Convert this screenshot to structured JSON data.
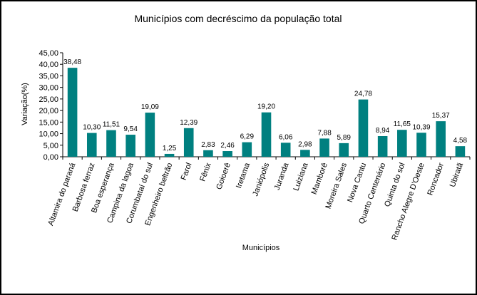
{
  "chart_data": {
    "type": "bar",
    "title": "Municípios com decréscimo da população total",
    "xlabel": "Municípios",
    "ylabel": "Variação(%)",
    "ylim": [
      0,
      45
    ],
    "yticks": [
      0,
      5,
      10,
      15,
      20,
      25,
      30,
      35,
      40,
      45
    ],
    "ytick_labels": [
      "0,00",
      "5,00",
      "10,00",
      "15,00",
      "20,00",
      "25,00",
      "30,00",
      "35,00",
      "40,00",
      "45,00"
    ],
    "grid": false,
    "legend": "none",
    "bar_color": "#008080",
    "categories": [
      "Altamira do paraná",
      "Barbosa ferraz",
      "Boa esperança",
      "Campina da lagoa",
      "Corumbataí do sul",
      "Engenheiro beltrão",
      "Farol",
      "Fênix",
      "Goioerê",
      "Iretama",
      "Janiópolis",
      "Juranda",
      "Luiziana",
      "Mamborê",
      "Moreira Sales",
      "Nova Cantu",
      "Quarto Centenário",
      "Quinta do sol",
      "Rancho Alegre D'Oeste",
      "Roncador",
      "Ubiratã"
    ],
    "values": [
      38.48,
      10.3,
      11.51,
      9.54,
      19.09,
      1.25,
      12.39,
      2.83,
      2.46,
      6.29,
      19.2,
      6.06,
      2.98,
      7.88,
      5.89,
      24.78,
      8.94,
      11.65,
      10.39,
      15.37,
      4.58
    ],
    "value_labels": [
      "38,48",
      "10,30",
      "11,51",
      "9,54",
      "19,09",
      "1,25",
      "12,39",
      "2,83",
      "2,46",
      "6,29",
      "19,20",
      "6,06",
      "2,98",
      "7,88",
      "5,89",
      "24,78",
      "8,94",
      "11,65",
      "10,39",
      "15,37",
      "4,58"
    ]
  }
}
